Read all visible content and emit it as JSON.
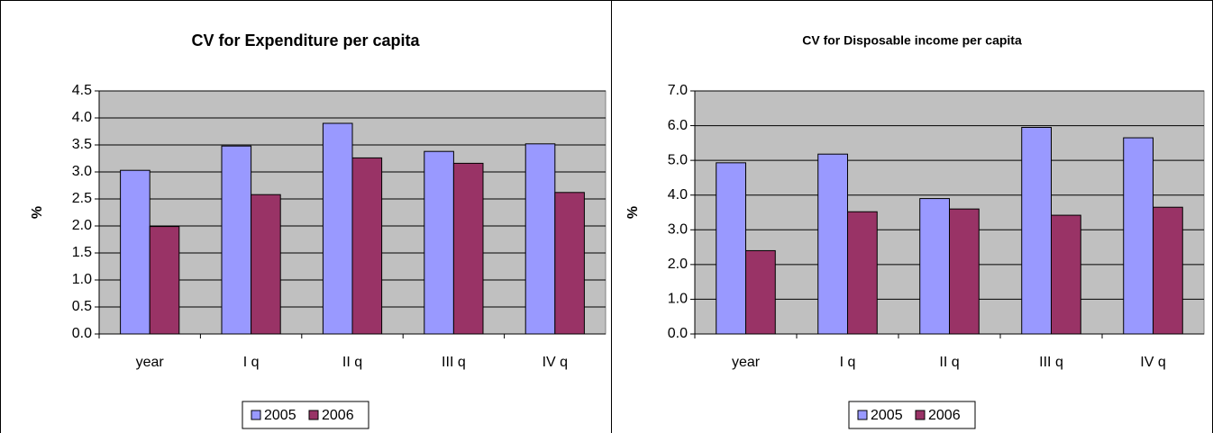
{
  "chart_data": [
    {
      "type": "bar",
      "title": "CV for Expenditure per capita",
      "y_label": "%",
      "categories": [
        "year",
        "I q",
        "II q",
        "III q",
        "IV q"
      ],
      "series": [
        {
          "name": "2005",
          "color": "#9999ff",
          "values": [
            3.03,
            3.48,
            3.9,
            3.38,
            3.52
          ]
        },
        {
          "name": "2006",
          "color": "#993366",
          "values": [
            1.99,
            2.58,
            3.26,
            3.16,
            2.62
          ]
        }
      ],
      "ylim": [
        0,
        4.5
      ],
      "yticks": [
        {
          "value": 0,
          "label": "0.0"
        },
        0.5,
        {
          "value": 1,
          "label": "1.0"
        },
        1.5,
        {
          "value": 2,
          "label": "2.0"
        },
        2.5,
        {
          "value": 3,
          "label": "3.0"
        },
        3.5,
        {
          "value": 4,
          "label": "4.0"
        },
        4.5
      ],
      "grid": true
    },
    {
      "type": "bar",
      "title": "CV for Disposable income per capita",
      "y_label": "%",
      "categories": [
        "year",
        "I q",
        "II q",
        "III q",
        "IV q"
      ],
      "series": [
        {
          "name": "2005",
          "color": "#9999ff",
          "values": [
            4.93,
            5.18,
            3.9,
            5.95,
            5.65
          ]
        },
        {
          "name": "2006",
          "color": "#993366",
          "values": [
            2.4,
            3.52,
            3.6,
            3.42,
            3.65
          ]
        }
      ],
      "ylim": [
        0,
        7
      ],
      "yticks": [
        {
          "value": 0,
          "label": "0.0"
        },
        {
          "value": 1,
          "label": "1.0"
        },
        {
          "value": 2,
          "label": "2.0"
        },
        {
          "value": 3,
          "label": "3.0"
        },
        {
          "value": 4,
          "label": "4.0"
        },
        {
          "value": 5,
          "label": "5.0"
        },
        {
          "value": 6,
          "label": "6.0"
        },
        {
          "value": 7,
          "label": "7.0"
        }
      ],
      "grid": true
    }
  ]
}
